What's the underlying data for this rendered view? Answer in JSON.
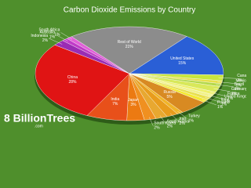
{
  "chart_data": {
    "type": "pie",
    "title": "Carbon Dioxide Emissions by Country",
    "categories": [
      "Rest of World",
      "United States",
      "Canada",
      "Mexico",
      "Brazil",
      "Germany",
      "France",
      "United Kingdom",
      "Italy",
      "Poland",
      "Russia",
      "Turkey",
      "Iran",
      "Saudi Arabia",
      "South Korea",
      "Japan",
      "India",
      "China",
      "Indonesia",
      "Australia",
      "South Africa"
    ],
    "values": [
      21,
      15,
      2,
      1,
      1,
      2,
      1,
      1,
      1,
      1,
      5,
      1,
      2,
      2,
      2,
      3,
      7,
      28,
      2,
      1,
      1
    ],
    "value_labels": [
      "21%",
      "15%",
      "2%",
      "1%",
      "1%",
      "2%",
      "1%",
      "1%",
      "1%",
      "1%",
      "5%",
      "1%",
      "2%",
      "2%",
      "2%",
      "3%",
      "7%",
      "28%",
      "2%",
      "1%",
      "1%"
    ],
    "colors": [
      "#8c8c8c",
      "#2a5fd6",
      "#c8e63c",
      "#e6e04a",
      "#b4d84a",
      "#d8e85a",
      "#eef06a",
      "#f2f28a",
      "#e8e050",
      "#f4e830",
      "#d88a22",
      "#f0b428",
      "#e89c1c",
      "#e8a830",
      "#f09020",
      "#ec7a12",
      "#e8501a",
      "#e01414",
      "#9a2cb4",
      "#c03cc8",
      "#e060d8"
    ]
  },
  "logo": {
    "name": "8 BillionTrees",
    "domain": ".com"
  }
}
